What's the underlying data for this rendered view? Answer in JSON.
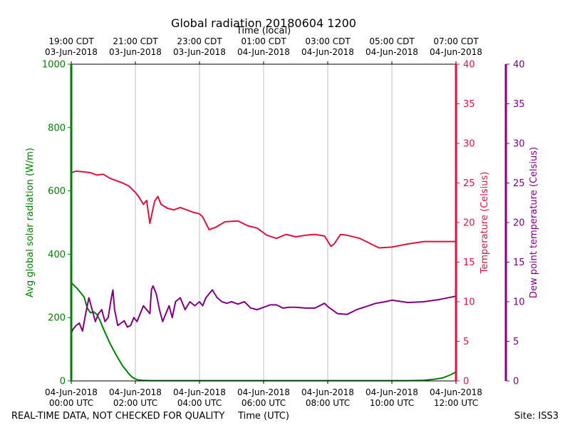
{
  "chart_data": {
    "type": "line",
    "title": "Global radiation 20180604 1200",
    "top_xlabel": "Time (local)",
    "xlabel": "Time (UTC)",
    "footer_left": "REAL-TIME DATA, NOT CHECKED FOR QUALITY",
    "footer_right": "Site: ISS3",
    "x_range_hours": [
      0,
      12
    ],
    "bottom_ticks": [
      {
        "hour": 0,
        "line1": "04-Jun-2018",
        "line2": "00:00 UTC"
      },
      {
        "hour": 2,
        "line1": "04-Jun-2018",
        "line2": "02:00 UTC"
      },
      {
        "hour": 4,
        "line1": "04-Jun-2018",
        "line2": "04:00 UTC"
      },
      {
        "hour": 6,
        "line1": "04-Jun-2018",
        "line2": "06:00 UTC"
      },
      {
        "hour": 8,
        "line1": "04-Jun-2018",
        "line2": "08:00 UTC"
      },
      {
        "hour": 10,
        "line1": "04-Jun-2018",
        "line2": "10:00 UTC"
      },
      {
        "hour": 12,
        "line1": "04-Jun-2018",
        "line2": "12:00 UTC"
      }
    ],
    "top_ticks": [
      {
        "hour": 0,
        "line1": "19:00 CDT",
        "line2": "03-Jun-2018"
      },
      {
        "hour": 2,
        "line1": "21:00 CDT",
        "line2": "03-Jun-2018"
      },
      {
        "hour": 4,
        "line1": "23:00 CDT",
        "line2": "03-Jun-2018"
      },
      {
        "hour": 6,
        "line1": "01:00 CDT",
        "line2": "04-Jun-2018"
      },
      {
        "hour": 8,
        "line1": "03:00 CDT",
        "line2": "04-Jun-2018"
      },
      {
        "hour": 10,
        "line1": "05:00 CDT",
        "line2": "04-Jun-2018"
      },
      {
        "hour": 12,
        "line1": "07:00 CDT",
        "line2": "04-Jun-2018"
      }
    ],
    "axes": {
      "radiation": {
        "label": "Avg global solar radiation (W/m)",
        "ylim": [
          0,
          1000
        ],
        "ticks": [
          0,
          200,
          400,
          600,
          800,
          1000
        ],
        "color": "#008000"
      },
      "temperature": {
        "label": "Temperature (Celsius)",
        "ylim": [
          0,
          40
        ],
        "ticks": [
          0,
          5,
          10,
          15,
          20,
          25,
          30,
          35,
          40
        ],
        "color": "#dc143c"
      },
      "dewpoint": {
        "label": "Dew point temperature (Celsius)",
        "ylim": [
          0,
          40
        ],
        "ticks": [
          0,
          5,
          10,
          15,
          20,
          25,
          30,
          35,
          40
        ],
        "color": "#800080"
      }
    },
    "series": [
      {
        "name": "Avg global solar radiation",
        "axis": "radiation",
        "color": "#008000",
        "x": [
          0,
          0.2,
          0.4,
          0.5,
          0.6,
          0.7,
          0.8,
          0.9,
          1.0,
          1.2,
          1.4,
          1.6,
          1.8,
          1.9,
          2.0,
          2.1,
          2.2,
          2.5,
          3,
          4,
          5,
          6,
          7,
          8,
          9,
          10,
          10.5,
          11,
          11.3,
          11.6,
          11.8,
          12
        ],
        "values": [
          310,
          290,
          265,
          230,
          215,
          218,
          210,
          190,
          165,
          120,
          82,
          48,
          22,
          12,
          6,
          3,
          2,
          1,
          1,
          1,
          1,
          1,
          1,
          1,
          1,
          1,
          1,
          2,
          5,
          10,
          18,
          28
        ]
      },
      {
        "name": "Temperature",
        "axis": "temperature",
        "color": "#dc143c",
        "x": [
          0,
          0.15,
          0.4,
          0.6,
          0.8,
          1.0,
          1.2,
          1.4,
          1.6,
          1.8,
          2.0,
          2.1,
          2.25,
          2.35,
          2.45,
          2.6,
          2.7,
          2.8,
          3.0,
          3.2,
          3.4,
          3.6,
          3.8,
          4.0,
          4.1,
          4.3,
          4.5,
          4.8,
          5.2,
          5.5,
          5.8,
          6.1,
          6.4,
          6.7,
          7.0,
          7.3,
          7.6,
          7.9,
          8.1,
          8.2,
          8.4,
          8.6,
          9.0,
          9.3,
          9.6,
          10.0,
          10.5,
          11.0,
          11.5,
          12.0
        ],
        "values": [
          26.3,
          26.5,
          26.4,
          26.3,
          26.0,
          26.1,
          25.6,
          25.3,
          25.0,
          24.6,
          23.8,
          23.3,
          22.3,
          22.8,
          19.9,
          22.7,
          23.3,
          22.3,
          21.8,
          21.6,
          21.9,
          21.6,
          21.3,
          21.1,
          20.7,
          19.1,
          19.4,
          20.1,
          20.2,
          19.6,
          19.3,
          18.4,
          18.0,
          18.5,
          18.2,
          18.4,
          18.5,
          18.3,
          17.0,
          17.3,
          18.5,
          18.4,
          18.0,
          17.4,
          16.8,
          16.9,
          17.3,
          17.6,
          17.6,
          17.6
        ]
      },
      {
        "name": "Dew point temperature",
        "axis": "dewpoint",
        "color": "#800080",
        "x": [
          0,
          0.05,
          0.15,
          0.25,
          0.35,
          0.45,
          0.55,
          0.65,
          0.75,
          0.85,
          0.95,
          1.05,
          1.15,
          1.25,
          1.3,
          1.35,
          1.45,
          1.55,
          1.65,
          1.75,
          1.85,
          1.95,
          2.05,
          2.15,
          2.25,
          2.35,
          2.45,
          2.5,
          2.55,
          2.65,
          2.75,
          2.85,
          2.95,
          3.05,
          3.15,
          3.25,
          3.4,
          3.55,
          3.7,
          3.85,
          4.0,
          4.1,
          4.2,
          4.3,
          4.4,
          4.55,
          4.7,
          4.85,
          5.0,
          5.2,
          5.4,
          5.6,
          5.8,
          6.0,
          6.2,
          6.4,
          6.6,
          6.8,
          7.0,
          7.3,
          7.6,
          7.9,
          8.0,
          8.3,
          8.6,
          8.9,
          9.2,
          9.5,
          9.8,
          10.0,
          10.5,
          11.0,
          11.5,
          12.0
        ],
        "values": [
          6.0,
          6.5,
          7.0,
          7.3,
          6.3,
          8.5,
          10.5,
          9.0,
          7.5,
          8.5,
          9.0,
          7.5,
          8.0,
          10.5,
          11.5,
          9.0,
          7.0,
          7.3,
          7.6,
          6.8,
          7.0,
          8.0,
          7.5,
          8.5,
          9.5,
          9.0,
          8.5,
          11.5,
          12.0,
          11.0,
          9.0,
          7.5,
          8.5,
          9.5,
          8.0,
          10.0,
          10.5,
          9.0,
          10.0,
          9.5,
          10.0,
          9.5,
          10.5,
          11.0,
          11.5,
          10.5,
          10.0,
          9.8,
          10.0,
          9.7,
          10.0,
          9.2,
          9.0,
          9.3,
          9.6,
          9.6,
          9.2,
          9.3,
          9.3,
          9.2,
          9.2,
          9.8,
          9.4,
          8.5,
          8.4,
          9.0,
          9.4,
          9.8,
          10.0,
          10.2,
          9.9,
          10.0,
          10.3,
          10.7
        ]
      }
    ]
  }
}
